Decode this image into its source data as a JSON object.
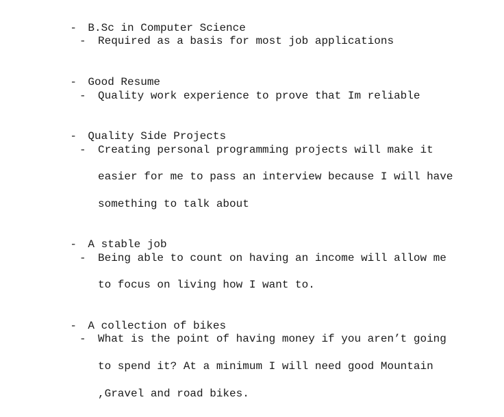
{
  "items": [
    {
      "label": "B.Sc in Computer Science",
      "sub_lines": [
        "Required as a basis for most job applications"
      ]
    },
    {
      "label": "Good Resume",
      "sub_lines": [
        "Quality work experience to prove that Im reliable"
      ]
    },
    {
      "label": "Quality Side Projects",
      "sub_lines": [
        "Creating personal programming projects will make it",
        "easier for me to pass an interview because I will have",
        "something to talk about"
      ]
    },
    {
      "label": "A stable job",
      "sub_lines": [
        "Being able to count on having an income will allow me",
        "to focus on living how I want to."
      ]
    },
    {
      "label": "A collection of bikes",
      "sub_lines": [
        "What is the point of having money if you aren’t going",
        "to spend it? At a minimum I will need good Mountain",
        ",Gravel and road bikes."
      ]
    }
  ],
  "bullet": "-"
}
